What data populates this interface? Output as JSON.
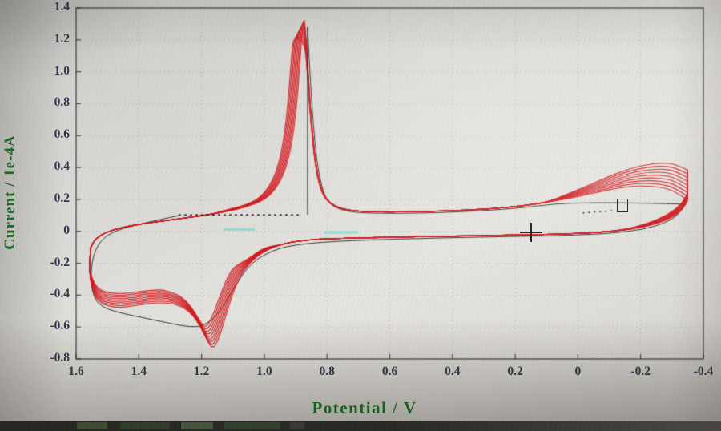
{
  "chart_data": {
    "type": "line",
    "title": "",
    "xlabel": "Potential / V",
    "ylabel": "Current / 1e-4A",
    "xlim": [
      1.6,
      -0.4
    ],
    "ylim": [
      -0.8,
      1.4
    ],
    "x_axis_reversed": true,
    "grid": "dotted",
    "x_ticks": [
      "1.6",
      "1.4",
      "1.2",
      "1.0",
      "0.8",
      "0.6",
      "0.4",
      "0.2",
      "0",
      "-0.2",
      "-0.4"
    ],
    "y_ticks": [
      "1.4",
      "1.2",
      "1.0",
      "0.8",
      "0.6",
      "0.4",
      "0.2",
      "0",
      "-0.2",
      "-0.4",
      "-0.6",
      "-0.8"
    ],
    "num_cycles": 9,
    "colors": {
      "trace": "#cf1016",
      "first_cycle": "#1b1b1b",
      "axis_title": "#0e7418",
      "tick_label": "#2a3045",
      "axis_line": "#3a3a3a",
      "grid": "#8c8c96",
      "highlight": "#8fd9cf"
    },
    "series": [
      {
        "name": "cv-red-cycles",
        "anodic_scan": [
          [
            -0.35,
            0.195
          ],
          [
            -0.31,
            0.25
          ],
          [
            -0.27,
            0.275
          ],
          [
            -0.22,
            0.285
          ],
          [
            -0.17,
            0.282
          ],
          [
            -0.12,
            0.268
          ],
          [
            -0.07,
            0.248
          ],
          [
            -0.02,
            0.226
          ],
          [
            0.04,
            0.202
          ],
          [
            0.1,
            0.182
          ],
          [
            0.18,
            0.158
          ],
          [
            0.27,
            0.143
          ],
          [
            0.36,
            0.132
          ],
          [
            0.45,
            0.126
          ],
          [
            0.54,
            0.122
          ],
          [
            0.62,
            0.121
          ],
          [
            0.7,
            0.126
          ],
          [
            0.755,
            0.14
          ],
          [
            0.79,
            0.175
          ],
          [
            0.815,
            0.24
          ],
          [
            0.835,
            0.4
          ],
          [
            0.85,
            0.7
          ],
          [
            0.862,
            1.05
          ],
          [
            0.87,
            1.3
          ],
          [
            0.874,
            1.335
          ],
          [
            0.88,
            1.24
          ],
          [
            0.888,
            1.0
          ],
          [
            0.898,
            0.76
          ],
          [
            0.912,
            0.55
          ],
          [
            0.93,
            0.4
          ],
          [
            0.952,
            0.3
          ],
          [
            0.98,
            0.228
          ],
          [
            1.01,
            0.188
          ],
          [
            1.05,
            0.158
          ],
          [
            1.1,
            0.132
          ],
          [
            1.16,
            0.11
          ],
          [
            1.23,
            0.09
          ],
          [
            1.31,
            0.068
          ],
          [
            1.39,
            0.047
          ],
          [
            1.46,
            0.022
          ],
          [
            1.51,
            -0.01
          ],
          [
            1.54,
            -0.05
          ],
          [
            1.553,
            -0.1
          ]
        ],
        "cathodic_scan": [
          [
            1.553,
            -0.1
          ],
          [
            1.558,
            -0.22
          ],
          [
            1.553,
            -0.33
          ],
          [
            1.54,
            -0.41
          ],
          [
            1.52,
            -0.452
          ],
          [
            1.495,
            -0.47
          ],
          [
            1.465,
            -0.478
          ],
          [
            1.435,
            -0.473
          ],
          [
            1.4,
            -0.462
          ],
          [
            1.365,
            -0.452
          ],
          [
            1.33,
            -0.447
          ],
          [
            1.295,
            -0.452
          ],
          [
            1.265,
            -0.47
          ],
          [
            1.238,
            -0.505
          ],
          [
            1.215,
            -0.56
          ],
          [
            1.195,
            -0.63
          ],
          [
            1.178,
            -0.7
          ],
          [
            1.166,
            -0.73
          ],
          [
            1.155,
            -0.715
          ],
          [
            1.142,
            -0.655
          ],
          [
            1.128,
            -0.565
          ],
          [
            1.112,
            -0.46
          ],
          [
            1.095,
            -0.36
          ],
          [
            1.075,
            -0.275
          ],
          [
            1.05,
            -0.205
          ],
          [
            1.02,
            -0.152
          ],
          [
            0.99,
            -0.115
          ],
          [
            0.955,
            -0.088
          ],
          [
            0.92,
            -0.07
          ],
          [
            0.88,
            -0.058
          ],
          [
            0.83,
            -0.05
          ],
          [
            0.77,
            -0.045
          ],
          [
            0.7,
            -0.041
          ],
          [
            0.62,
            -0.038
          ],
          [
            0.53,
            -0.034
          ],
          [
            0.44,
            -0.031
          ],
          [
            0.35,
            -0.028
          ],
          [
            0.26,
            -0.025
          ],
          [
            0.17,
            -0.022
          ],
          [
            0.08,
            -0.018
          ],
          [
            -0.01,
            -0.012
          ],
          [
            -0.1,
            -0.002
          ],
          [
            -0.18,
            0.015
          ],
          [
            -0.25,
            0.045
          ],
          [
            -0.305,
            0.09
          ],
          [
            -0.335,
            0.14
          ],
          [
            -0.35,
            0.195
          ]
        ]
      },
      {
        "name": "cv-first-cycle-black",
        "pre_peak": [
          [
            -0.34,
            0.17
          ],
          [
            0.0,
            0.19
          ],
          [
            0.2,
            0.14
          ],
          [
            0.45,
            0.115
          ],
          [
            0.62,
            0.112
          ],
          [
            0.72,
            0.118
          ],
          [
            0.78,
            0.15
          ],
          [
            0.81,
            0.22
          ],
          [
            0.835,
            0.45
          ],
          [
            0.852,
            0.9
          ],
          [
            0.862,
            1.28
          ]
        ],
        "vertical_line": {
          "x": 0.862,
          "y_top": 1.28,
          "y_bottom": 0.105
        },
        "dotted_baseline": {
          "y": 0.103,
          "x_from": 0.89,
          "x_to": 1.28
        },
        "post_peak": [
          [
            1.27,
            0.1
          ],
          [
            1.34,
            0.07
          ],
          [
            1.42,
            0.035
          ],
          [
            1.48,
            0.0
          ],
          [
            1.525,
            -0.06
          ],
          [
            1.55,
            -0.18
          ],
          [
            1.553,
            -0.33
          ],
          [
            1.54,
            -0.43
          ],
          [
            1.515,
            -0.475
          ],
          [
            1.48,
            -0.5
          ],
          [
            1.44,
            -0.52
          ],
          [
            1.39,
            -0.54
          ],
          [
            1.33,
            -0.565
          ],
          [
            1.28,
            -0.585
          ],
          [
            1.235,
            -0.6
          ],
          [
            1.2,
            -0.595
          ],
          [
            1.165,
            -0.555
          ],
          [
            1.13,
            -0.47
          ],
          [
            1.1,
            -0.37
          ],
          [
            1.07,
            -0.27
          ],
          [
            1.04,
            -0.2
          ],
          [
            1.0,
            -0.145
          ],
          [
            0.95,
            -0.105
          ],
          [
            0.9,
            -0.085
          ],
          [
            0.82,
            -0.068
          ],
          [
            0.72,
            -0.058
          ],
          [
            0.6,
            -0.05
          ],
          [
            0.45,
            -0.042
          ],
          [
            0.3,
            -0.036
          ],
          [
            0.15,
            -0.03
          ],
          [
            0.0,
            -0.024
          ],
          [
            -0.12,
            -0.01
          ],
          [
            -0.21,
            0.012
          ],
          [
            -0.275,
            0.05
          ],
          [
            -0.32,
            0.1
          ],
          [
            -0.34,
            0.17
          ]
        ]
      }
    ],
    "cycle_spread": {
      "peak_scale_step": 0.012,
      "peak_xshift_step": 0.004,
      "dip_scale_step": 0.0225,
      "dip_xshift_step": 0.003,
      "fan_offset_step": 0.0235,
      "tail_offset_step": 0.006
    },
    "cursor": {
      "x": 0.15,
      "y": -0.005
    },
    "selection_rect": {
      "x_from": -0.125,
      "x_to": -0.155,
      "y_top": 0.205,
      "y_bottom": 0.13
    },
    "dotted_marks": [
      {
        "x_from": -0.015,
        "x_to": -0.115,
        "y_from": 0.115,
        "y_to": 0.13
      }
    ],
    "cyan_marks": [
      {
        "x_from": 1.13,
        "x_to": 1.03,
        "y": 0.012
      },
      {
        "x_from": 0.81,
        "x_to": 0.7,
        "y": -0.006
      }
    ]
  },
  "taskbar": {
    "background": "#21211e",
    "blocks": [
      "#3f5a37",
      "#2c452a",
      "#4c6444",
      "#2e4a2c",
      "#3d3d38"
    ]
  }
}
